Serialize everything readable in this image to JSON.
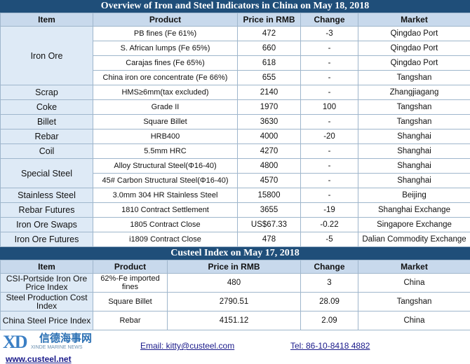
{
  "section1": {
    "title": "Overview of Iron and Steel Indicators in China on May 18, 2018",
    "headers": [
      "Item",
      "Product",
      "Price in RMB",
      "Change",
      "Market"
    ],
    "iron_ore": {
      "item": "Iron Ore",
      "rows": [
        {
          "product": "PB fines (Fe 61%)",
          "price": "472",
          "change": "-3",
          "market": "Qingdao Port"
        },
        {
          "product": "S. African lumps (Fe 65%)",
          "price": "660",
          "change": "-",
          "market": "Qingdao Port"
        },
        {
          "product": "Carajas fines (Fe 65%)",
          "price": "618",
          "change": "-",
          "market": "Qingdao Port"
        },
        {
          "product": "China iron ore concentrate (Fe 66%)",
          "price": "655",
          "change": "-",
          "market": "Tangshan"
        }
      ]
    },
    "rows_a": [
      {
        "item": "Scrap",
        "product": "HMS≥6mm(tax excluded)",
        "price": "2140",
        "change": "-",
        "market": "Zhangjiagang"
      },
      {
        "item": "Coke",
        "product": "Grade II",
        "price": "1970",
        "change": "100",
        "market": "Tangshan"
      },
      {
        "item": "Billet",
        "product": "Square Billet",
        "price": "3630",
        "change": "-",
        "market": "Tangshan"
      },
      {
        "item": "Rebar",
        "product": "HRB400",
        "price": "4000",
        "change": "-20",
        "market": "Shanghai"
      },
      {
        "item": "Coil",
        "product": "5.5mm HRC",
        "price": "4270",
        "change": "-",
        "market": "Shanghai"
      }
    ],
    "special_steel": {
      "item": "Special Steel",
      "rows": [
        {
          "product": "Alloy Structural Steel(Φ16-40)",
          "price": "4800",
          "change": "-",
          "market": "Shanghai"
        },
        {
          "product": "45# Carbon Structural Steel(Φ16-40)",
          "price": "4570",
          "change": "-",
          "market": "Shanghai"
        }
      ]
    },
    "rows_b": [
      {
        "item": "Stainless Steel",
        "product": "3.0mm 304 HR Stainless Steel",
        "price": "15800",
        "change": "-",
        "market": "Beijing"
      },
      {
        "item": "Rebar Futures",
        "product": "1810 Contract Settlement",
        "price": "3655",
        "change": "-19",
        "market": "Shanghai Exchange"
      },
      {
        "item": "Iron Ore Swaps",
        "product": "1805 Contract Close",
        "price": "US$67.33",
        "change": "-0.22",
        "market": "Singapore Exchange"
      },
      {
        "item": "Iron Ore Futures",
        "product": "i1809 Contract Close",
        "price": "478",
        "change": "-5",
        "market": "Dalian Commodity Exchange"
      }
    ]
  },
  "section2": {
    "title": "Custeel Index on May 17, 2018",
    "headers": [
      "Item",
      "Product",
      "Price in RMB",
      "Change",
      "Market"
    ],
    "rows": [
      {
        "item": "CSI-Portside Iron Ore Price Index",
        "product": "62%-Fe imported fines",
        "price": "480",
        "change": "3",
        "market": "China"
      },
      {
        "item": "Steel Production Cost Index",
        "product": "Square Billet",
        "price": "2790.51",
        "change": "28.09",
        "market": "Tangshan"
      },
      {
        "item": "China Steel Price Index",
        "product": "Rebar",
        "price": "4151.12",
        "change": "2.09",
        "market": "China"
      }
    ]
  },
  "footer": {
    "logo_mark": "XD",
    "logo_cn": "信德海事网",
    "logo_en": "XINDE MARINE NEWS",
    "website": "www.custeel.net",
    "email": "Email: kitty@custeel.com",
    "tel": "Tel: 86-10-8418 4882"
  }
}
